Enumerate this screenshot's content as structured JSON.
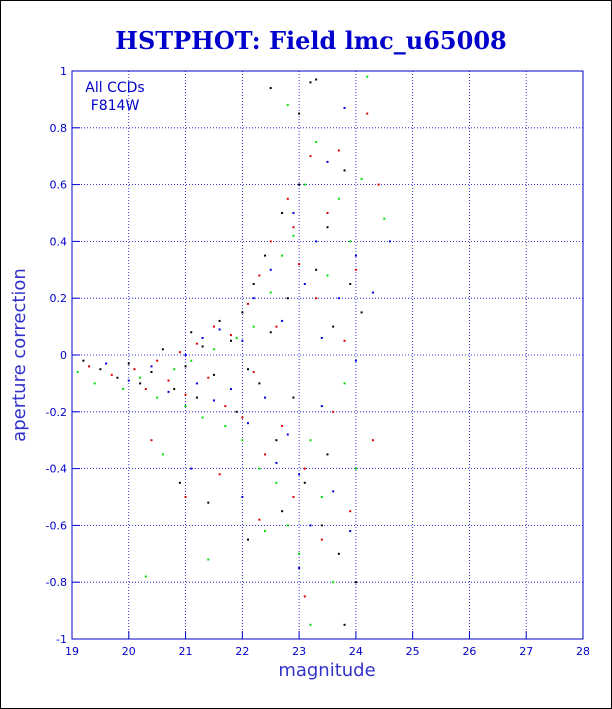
{
  "chart_data": {
    "type": "scatter",
    "title": "HSTPHOT: Field lmc_u65008",
    "xlabel": "magnitude",
    "ylabel": "aperture correction",
    "xlim": [
      19,
      28
    ],
    "ylim": [
      -1,
      1
    ],
    "x_ticks": [
      19,
      20,
      21,
      22,
      23,
      24,
      25,
      26,
      27,
      28
    ],
    "y_ticks": [
      -1,
      -0.8,
      -0.6,
      -0.4,
      -0.2,
      0,
      0.2,
      0.4,
      0.6,
      0.8,
      1
    ],
    "y_tick_labels": [
      "-1",
      "-0.8",
      "-0.6",
      "-0.4",
      "-0.2",
      "0",
      "0.2",
      "0.4",
      "0.6",
      "0.8",
      "1"
    ],
    "grid": true,
    "annotations": [
      "All CCDs",
      "F814W"
    ],
    "colors": {
      "axis": "#0000cc",
      "grid": "#0000cc",
      "title": "#0000cc"
    },
    "series": [
      {
        "color": "#000000",
        "points": [
          [
            19.2,
            -0.02
          ],
          [
            19.5,
            -0.05
          ],
          [
            19.8,
            -0.08
          ],
          [
            20.0,
            -0.03
          ],
          [
            20.2,
            -0.1
          ],
          [
            20.4,
            -0.06
          ],
          [
            20.6,
            0.02
          ],
          [
            20.8,
            -0.12
          ],
          [
            21.0,
            -0.04
          ],
          [
            21.1,
            0.08
          ],
          [
            21.2,
            -0.15
          ],
          [
            21.3,
            0.03
          ],
          [
            21.5,
            -0.07
          ],
          [
            21.6,
            0.12
          ],
          [
            21.8,
            0.05
          ],
          [
            21.9,
            -0.2
          ],
          [
            22.0,
            0.15
          ],
          [
            22.1,
            -0.05
          ],
          [
            22.2,
            0.25
          ],
          [
            22.3,
            -0.1
          ],
          [
            22.4,
            0.35
          ],
          [
            22.5,
            0.08
          ],
          [
            22.6,
            -0.3
          ],
          [
            22.7,
            0.5
          ],
          [
            22.8,
            0.2
          ],
          [
            22.9,
            -0.15
          ],
          [
            23.0,
            0.6
          ],
          [
            23.1,
            -0.45
          ],
          [
            23.2,
            0.96
          ],
          [
            23.3,
            0.3
          ],
          [
            23.4,
            -0.6
          ],
          [
            23.5,
            0.45
          ],
          [
            23.6,
            0.1
          ],
          [
            23.7,
            -0.7
          ],
          [
            23.8,
            0.65
          ],
          [
            23.9,
            0.25
          ],
          [
            24.0,
            -0.8
          ],
          [
            24.1,
            0.15
          ],
          [
            23.3,
            0.97
          ],
          [
            22.5,
            0.94
          ],
          [
            20.9,
            -0.45
          ],
          [
            21.4,
            -0.52
          ],
          [
            22.1,
            -0.65
          ],
          [
            23.0,
            0.85
          ],
          [
            23.5,
            -0.35
          ],
          [
            22.7,
            -0.55
          ],
          [
            23.8,
            -0.95
          ]
        ]
      },
      {
        "color": "#dd0000",
        "points": [
          [
            19.3,
            -0.04
          ],
          [
            19.7,
            -0.07
          ],
          [
            20.1,
            -0.05
          ],
          [
            20.3,
            -0.12
          ],
          [
            20.5,
            -0.02
          ],
          [
            20.7,
            -0.09
          ],
          [
            20.9,
            0.01
          ],
          [
            21.0,
            -0.14
          ],
          [
            21.2,
            0.04
          ],
          [
            21.4,
            -0.08
          ],
          [
            21.5,
            0.1
          ],
          [
            21.7,
            -0.18
          ],
          [
            21.8,
            0.07
          ],
          [
            22.0,
            -0.22
          ],
          [
            22.1,
            0.18
          ],
          [
            22.2,
            -0.06
          ],
          [
            22.3,
            0.28
          ],
          [
            22.4,
            -0.35
          ],
          [
            22.5,
            0.4
          ],
          [
            22.6,
            0.1
          ],
          [
            22.7,
            -0.25
          ],
          [
            22.8,
            0.55
          ],
          [
            22.9,
            -0.5
          ],
          [
            23.0,
            0.32
          ],
          [
            23.1,
            -0.4
          ],
          [
            23.2,
            0.7
          ],
          [
            23.3,
            0.2
          ],
          [
            23.4,
            -0.65
          ],
          [
            23.5,
            0.5
          ],
          [
            23.6,
            -0.2
          ],
          [
            23.7,
            0.72
          ],
          [
            23.8,
            0.05
          ],
          [
            23.9,
            -0.55
          ],
          [
            24.0,
            0.3
          ],
          [
            24.2,
            0.85
          ],
          [
            24.3,
            -0.3
          ],
          [
            21.0,
            -0.5
          ],
          [
            21.6,
            -0.42
          ],
          [
            22.3,
            -0.58
          ],
          [
            20.4,
            -0.3
          ],
          [
            23.1,
            -0.85
          ],
          [
            22.9,
            0.45
          ],
          [
            24.4,
            0.6
          ]
        ]
      },
      {
        "color": "#00dd00",
        "points": [
          [
            19.1,
            -0.06
          ],
          [
            19.4,
            -0.1
          ],
          [
            19.9,
            -0.12
          ],
          [
            20.2,
            -0.08
          ],
          [
            20.5,
            -0.15
          ],
          [
            20.8,
            -0.05
          ],
          [
            21.0,
            -0.18
          ],
          [
            21.1,
            -0.02
          ],
          [
            21.3,
            -0.22
          ],
          [
            21.5,
            0.02
          ],
          [
            21.7,
            -0.25
          ],
          [
            21.9,
            0.06
          ],
          [
            22.0,
            -0.3
          ],
          [
            22.2,
            0.1
          ],
          [
            22.3,
            -0.4
          ],
          [
            22.5,
            0.22
          ],
          [
            22.6,
            -0.45
          ],
          [
            22.7,
            0.35
          ],
          [
            22.8,
            -0.6
          ],
          [
            22.9,
            0.42
          ],
          [
            23.0,
            -0.7
          ],
          [
            23.1,
            0.6
          ],
          [
            23.2,
            -0.3
          ],
          [
            23.3,
            0.75
          ],
          [
            23.4,
            -0.5
          ],
          [
            23.5,
            0.28
          ],
          [
            23.6,
            -0.8
          ],
          [
            23.7,
            0.55
          ],
          [
            23.8,
            -0.1
          ],
          [
            23.9,
            0.4
          ],
          [
            24.0,
            -0.4
          ],
          [
            24.2,
            0.98
          ],
          [
            24.5,
            0.48
          ],
          [
            20.6,
            -0.35
          ],
          [
            21.4,
            -0.72
          ],
          [
            22.4,
            -0.62
          ],
          [
            23.2,
            -0.95
          ],
          [
            22.8,
            0.88
          ],
          [
            24.1,
            0.62
          ],
          [
            20.3,
            -0.78
          ]
        ]
      },
      {
        "color": "#0000dd",
        "points": [
          [
            19.6,
            -0.03
          ],
          [
            20.0,
            -0.09
          ],
          [
            20.4,
            -0.04
          ],
          [
            20.7,
            -0.13
          ],
          [
            21.0,
            0.0
          ],
          [
            21.2,
            -0.1
          ],
          [
            21.3,
            0.06
          ],
          [
            21.5,
            -0.16
          ],
          [
            21.6,
            0.09
          ],
          [
            21.8,
            -0.12
          ],
          [
            22.0,
            0.05
          ],
          [
            22.1,
            -0.24
          ],
          [
            22.2,
            0.2
          ],
          [
            22.4,
            -0.15
          ],
          [
            22.5,
            0.3
          ],
          [
            22.6,
            -0.38
          ],
          [
            22.7,
            0.12
          ],
          [
            22.8,
            -0.28
          ],
          [
            22.9,
            0.5
          ],
          [
            23.0,
            -0.42
          ],
          [
            23.1,
            0.25
          ],
          [
            23.2,
            -0.6
          ],
          [
            23.3,
            0.4
          ],
          [
            23.4,
            -0.18
          ],
          [
            23.5,
            0.68
          ],
          [
            23.6,
            -0.48
          ],
          [
            23.7,
            0.2
          ],
          [
            23.8,
            0.87
          ],
          [
            23.9,
            -0.62
          ],
          [
            24.0,
            0.35
          ],
          [
            24.3,
            0.22
          ],
          [
            24.6,
            0.4
          ],
          [
            23.4,
            0.06
          ],
          [
            21.1,
            -0.4
          ],
          [
            22.0,
            -0.5
          ],
          [
            23.0,
            -0.75
          ],
          [
            24.0,
            -0.02
          ]
        ]
      }
    ]
  }
}
